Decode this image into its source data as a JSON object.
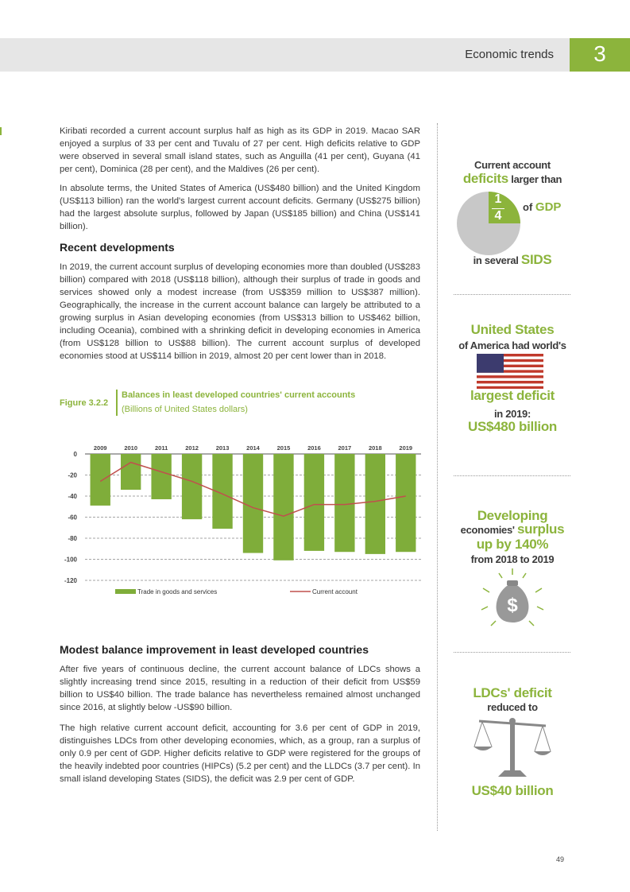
{
  "header": {
    "section_title": "Economic trends",
    "section_number": "3"
  },
  "body": {
    "headings": [
      "Recent developments",
      "Modest balance improvement in least developed countries"
    ],
    "paragraphs": [
      "Kiribati recorded a current account surplus half as high as its GDP in 2019. Macao SAR enjoyed a surplus of 33 per cent and Tuvalu of 27 per cent. High deficits relative to GDP were observed in several small island states, such as Anguilla (41 per cent), Guyana (41 per cent), Dominica (28 per cent), and the Maldives (26 per cent).",
      "In absolute terms, the United States of America (US$480 billion) and the United Kingdom (US$113 billion) ran the world's largest current account deficits. Germany (US$275 billion) had the largest absolute surplus, followed by Japan (US$185 billion) and China (US$141 billion).",
      "In 2019, the current account surplus of developing economies more than doubled (US$283 billion) compared with 2018 (US$118 billion), although their surplus of trade in goods and services showed only a modest increase (from US$359 million to US$387 million). Geographically, the increase in the current account balance can largely be attributed to a growing surplus in Asian developing economies (from US$313 billion to US$462 billion, including Oceania), combined with a shrinking deficit in developing economies in America (from US$128 billion to US$88 billion). The current account surplus of developed economies stood at US$114 billion in 2019, almost 20 per cent lower than in 2018.",
      "After five years of continuous decline, the current account balance of LDCs shows a slightly increasing trend since 2015, resulting in a reduction of their deficit from US$59 billion to US$40 billion. The trade balance has nevertheless remained almost unchanged since 2016, at slightly below -US$90 billion.",
      "The high relative current account deficit, accounting for 3.6 per cent of GDP in 2019, distinguishes LDCs from other developing economies, which, as a group, ran a surplus of only 0.9 per cent of GDP. Higher deficits relative to GDP were registered for the groups of the heavily indebted poor countries (HIPCs) (5.2 per cent) and the LLDCs (3.7 per cent). In small island developing States (SIDS), the deficit was 2.9 per cent of GDP."
    ]
  },
  "figure_label": "Figure 3.2.2",
  "chart_data": {
    "type": "bar",
    "title": "Balances in least developed countries' current accounts",
    "subtitle": "(Billions of United States dollars)",
    "categories": [
      "2009",
      "2010",
      "2011",
      "2012",
      "2013",
      "2014",
      "2015",
      "2016",
      "2017",
      "2018",
      "2019"
    ],
    "series": [
      {
        "name": "Trade in goods and services",
        "type": "bar",
        "color": "#7fad3a",
        "values": [
          -49,
          -34,
          -43,
          -62,
          -71,
          -94,
          -101,
          -92,
          -93,
          -95,
          -93
        ]
      },
      {
        "name": "Current account",
        "type": "line",
        "color": "#c0504d",
        "values": [
          -26,
          -8,
          -17,
          -26,
          -38,
          -51,
          -59,
          -48,
          -48,
          -45,
          -40
        ]
      }
    ],
    "ylim": [
      -120,
      0
    ],
    "yticks": [
      0,
      -20,
      -40,
      -60,
      -80,
      -100,
      -120
    ],
    "grid": true,
    "legend": "bottom"
  },
  "sidebar": [
    {
      "lines": [
        [
          "Current account"
        ],
        [
          "deficits",
          "larger than"
        ],
        [
          "of",
          "GDP"
        ],
        [
          "in several",
          "SIDS"
        ]
      ],
      "fraction": [
        "1",
        "4"
      ]
    },
    {
      "lines": [
        [
          "United States"
        ],
        [
          "of America had world's"
        ],
        [
          "largest deficit"
        ],
        [
          "in 2019:"
        ],
        [
          "US$480 billion"
        ]
      ]
    },
    {
      "lines": [
        [
          "Developing"
        ],
        [
          "economies'",
          "surplus"
        ],
        [
          "up by 140%"
        ],
        [
          "from 2018 to 2019"
        ]
      ],
      "icon_text": "$"
    },
    {
      "lines": [
        [
          "LDCs' deficit"
        ],
        [
          "reduced to"
        ],
        [
          "US$40 billion"
        ]
      ]
    }
  ],
  "page_number": "49"
}
